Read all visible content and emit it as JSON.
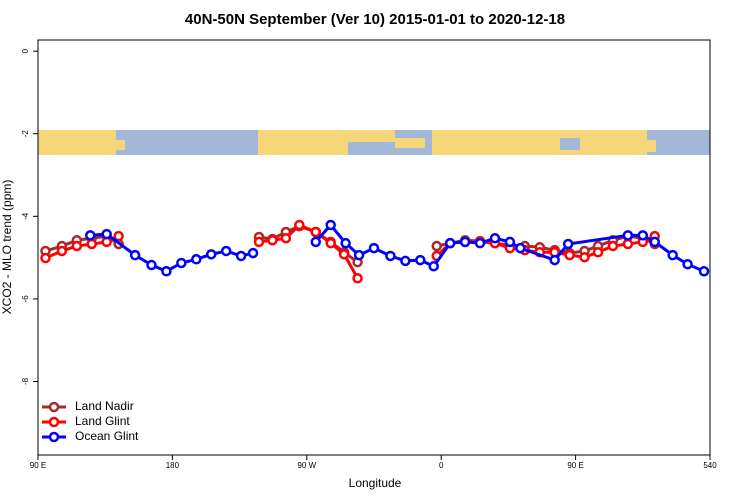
{
  "chart_data": {
    "type": "line",
    "title": "40N-50N September (Ver 10)   2015-01-01 to 2020-12-18",
    "xlabel": "Longitude",
    "ylabel": "XCO2 - MLO trend (ppm)",
    "xlim": [
      90,
      540
    ],
    "ylim": [
      -9.78,
      0.27
    ],
    "xticks": [
      {
        "value": 90,
        "label": "90 E"
      },
      180,
      {
        "value": 270,
        "label": "90 W"
      },
      {
        "value": 360,
        "label": "0"
      },
      {
        "value": 450,
        "label": "90 E"
      },
      540
    ],
    "yticks": [
      0,
      -2,
      -4,
      -6,
      -8
    ],
    "legend": "bottom-left",
    "series": [
      {
        "name": "Land Nadir",
        "color": "#a52a2a",
        "x": [
          95,
          106,
          116,
          126,
          136,
          144,
          null,
          238,
          247,
          256,
          265,
          276,
          286,
          295,
          304,
          null,
          357,
          366,
          376,
          386,
          396,
          406,
          416,
          426,
          436,
          446,
          456,
          465,
          475,
          485,
          495,
          503
        ],
        "values": [
          -4.84,
          -4.72,
          -4.58,
          -4.53,
          -4.48,
          -4.67,
          null,
          -4.5,
          -4.55,
          -4.38,
          -4.24,
          -4.38,
          -4.62,
          -4.87,
          -5.11,
          null,
          -4.72,
          -4.65,
          -4.58,
          -4.6,
          -4.65,
          -4.7,
          -4.72,
          -4.75,
          -4.82,
          -4.89,
          -4.84,
          -4.72,
          -4.58,
          -4.48,
          -4.53,
          -4.67
        ]
      },
      {
        "name": "Land Glint",
        "color": "#ff0000",
        "x": [
          95,
          106,
          116,
          126,
          136,
          144,
          null,
          238,
          247,
          256,
          265,
          276,
          286,
          295,
          304,
          null,
          357,
          366,
          376,
          386,
          396,
          406,
          416,
          426,
          436,
          446,
          456,
          465,
          475,
          485,
          495,
          503
        ],
        "values": [
          -5.01,
          -4.84,
          -4.72,
          -4.67,
          -4.62,
          -4.48,
          null,
          -4.62,
          -4.58,
          -4.53,
          -4.21,
          -4.38,
          -4.65,
          -4.92,
          -5.5,
          null,
          -4.96,
          -4.65,
          -4.62,
          -4.62,
          -4.65,
          -4.77,
          -4.82,
          -4.87,
          -4.87,
          -4.94,
          -4.99,
          -4.87,
          -4.72,
          -4.67,
          -4.62,
          -4.48
        ]
      },
      {
        "name": "Ocean Glint",
        "color": "#0000ff",
        "x": [
          125,
          136,
          155,
          166,
          176,
          186,
          196,
          206,
          216,
          226,
          234,
          null,
          276,
          286,
          296,
          305,
          315,
          326,
          336,
          346,
          355,
          366,
          376,
          386,
          396,
          406,
          413,
          436,
          445,
          485,
          495,
          503,
          515,
          525,
          536
        ],
        "values": [
          -4.46,
          -4.43,
          -4.94,
          -5.18,
          -5.33,
          -5.13,
          -5.04,
          -4.92,
          -4.84,
          -4.96,
          -4.89,
          null,
          -4.62,
          -4.21,
          -4.65,
          -4.94,
          -4.77,
          -4.96,
          -5.08,
          -5.06,
          -5.21,
          -4.65,
          -4.62,
          -4.65,
          -4.53,
          -4.62,
          -4.77,
          -5.06,
          -4.67,
          -4.46,
          -4.46,
          -4.62,
          -4.94,
          -5.16,
          -5.33
        ]
      }
    ]
  }
}
